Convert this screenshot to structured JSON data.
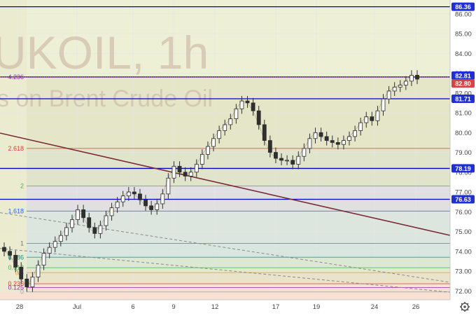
{
  "watermark": {
    "symbol": "UKOIL, 1h",
    "description": "s on Brent Crude Oil"
  },
  "colors": {
    "price_line": "#0000cc",
    "trend_line": "#7a2a35",
    "candles": "#2f2f2f",
    "badge_blue": "#1f2fd6",
    "badge_red": "#d94343",
    "grid": "#e6e6e6",
    "axis_text": "#444444"
  },
  "chart_data": {
    "type": "line",
    "title": "",
    "xlabel": "",
    "ylabel": "",
    "x_ticks": [
      "28",
      "Jul",
      "6",
      "9",
      "12",
      "17",
      "19",
      "24",
      "26"
    ],
    "y_ticks": [
      72.0,
      73.0,
      74.0,
      75.0,
      76.0,
      77.0,
      78.0,
      79.0,
      80.0,
      81.0,
      82.0,
      83.0,
      84.0,
      85.0,
      86.0
    ],
    "ylim": [
      71.55,
      86.7
    ],
    "grid": true,
    "price_levels": [
      86.36,
      82.81,
      82.8,
      81.71,
      78.19,
      76.63
    ],
    "fib_levels": [
      {
        "label": "0",
        "value": 71.95,
        "color": "#9e9e9e"
      },
      {
        "label": "0.125",
        "value": 72.17,
        "color": "#9c27b0"
      },
      {
        "label": "0.236",
        "value": 72.36,
        "color": "#e53935"
      },
      {
        "label": "0.5",
        "value": 72.92,
        "color": "#ff9800"
      },
      {
        "label": "0.618",
        "value": 73.17,
        "color": "#4caf50"
      },
      {
        "label": "0.786",
        "value": 73.7,
        "color": "#009688"
      },
      {
        "label": "1",
        "value": 74.4,
        "color": "#607d8b"
      },
      {
        "label": "1.618",
        "value": 76.03,
        "color": "#2962ff"
      },
      {
        "label": "2",
        "value": 77.3,
        "color": "#4caf50"
      },
      {
        "label": "2.618",
        "value": 79.2,
        "color": "#e53935"
      },
      {
        "label": "4.236",
        "value": 82.8,
        "color": "#9c27b0"
      }
    ],
    "trend_line": {
      "from": {
        "x": "28",
        "y": 79.75
      },
      "to": {
        "x": "26",
        "y": 75.2
      }
    },
    "dashed_lines": [
      {
        "from": {
          "x": "28",
          "y": 75.8
        },
        "to": {
          "x": "26",
          "y": 72.7
        }
      },
      {
        "from": {
          "x": "28",
          "y": 74.05
        },
        "to": {
          "x": "26",
          "y": 72.1
        }
      }
    ],
    "series": [
      {
        "values": [
          74.0,
          73.8,
          73.2,
          72.6,
          72.2,
          72.7,
          73.3,
          73.9,
          74.2,
          74.5,
          74.8,
          75.2,
          75.6,
          76.1,
          75.7,
          75.2,
          74.9,
          75.3,
          75.8,
          76.2,
          76.5,
          76.8,
          77.0,
          76.9,
          76.6,
          76.3,
          76.1,
          76.4,
          76.9,
          77.7,
          78.3,
          78.0,
          77.8,
          78.0,
          78.4,
          78.9,
          79.3,
          79.7,
          80.1,
          80.4,
          80.7,
          81.2,
          81.6,
          81.5,
          81.1,
          80.4,
          79.6,
          79.0,
          78.7,
          78.6,
          78.6,
          78.4,
          78.8,
          79.2,
          79.7,
          80.0,
          79.8,
          79.6,
          79.5,
          79.4,
          79.6,
          79.8,
          80.1,
          80.5,
          80.8,
          80.6,
          81.1,
          81.7,
          82.1,
          82.3,
          82.4,
          82.6,
          82.9,
          82.7
        ]
      }
    ]
  }
}
